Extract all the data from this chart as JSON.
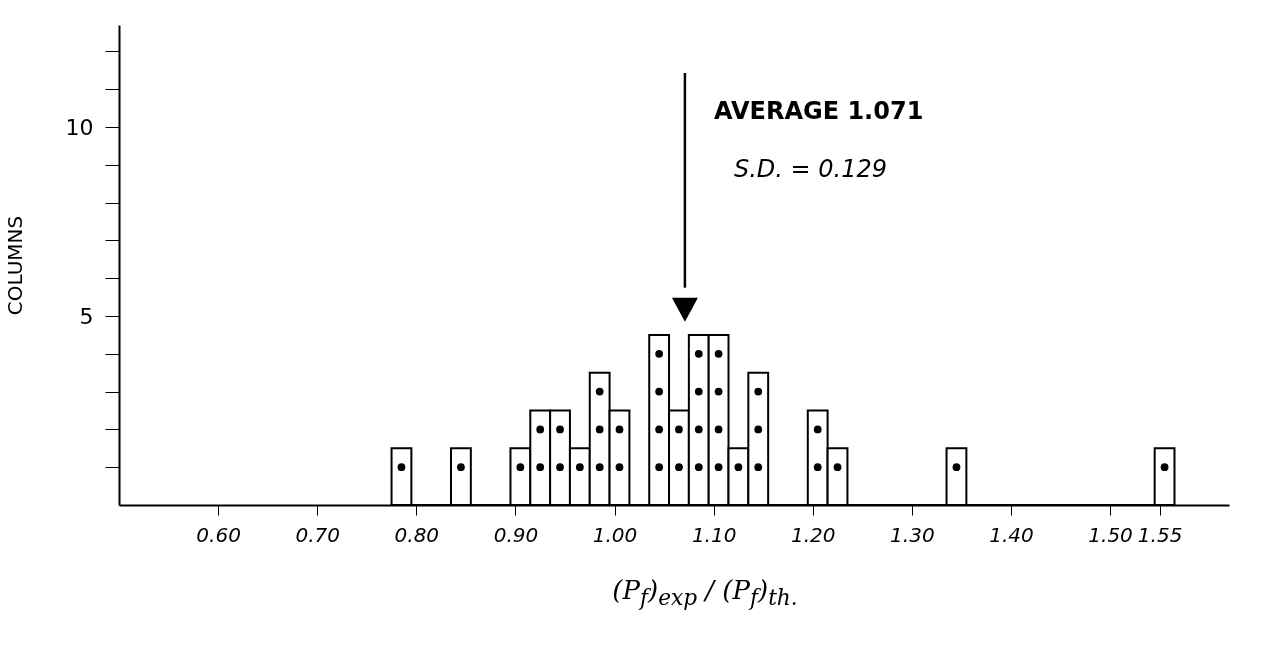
{
  "chart_data": {
    "type": "histogram",
    "xlabel": "(P$_{f}$)$_{exp}$ / (P$_{f}$)$_{th.}$",
    "ylabel": "COLUMNS",
    "series": [
      {
        "color": "#ffffff",
        "bins": [
          0.775,
          0.795,
          0.835,
          0.855,
          0.895,
          0.915,
          0.935,
          0.955,
          0.975,
          0.995,
          1.015,
          1.035,
          1.055,
          1.075,
          1.095,
          1.115,
          1.135,
          1.155,
          1.195,
          1.215,
          1.235,
          1.335,
          1.355,
          1.545,
          1.565
        ],
        "values": [
          1.5,
          0,
          1.5,
          0,
          1.5,
          2.5,
          2.5,
          1.5,
          3.5,
          2.5,
          0,
          4.5,
          2.5,
          4.5,
          4.5,
          1.5,
          3.5,
          0,
          2.5,
          1.5,
          0,
          1.5,
          0,
          1.5
        ]
      },
      {
        "type": "scatter",
        "color": "#000000",
        "marker": "circle",
        "x": [
          0.785,
          0.845,
          0.905,
          0.925,
          0.925,
          0.945,
          0.945,
          0.965,
          0.985,
          0.985,
          0.985,
          1.005,
          1.005,
          1.045,
          1.045,
          1.045,
          1.045,
          1.065,
          1.065,
          1.085,
          1.085,
          1.085,
          1.085,
          1.105,
          1.105,
          1.105,
          1.105,
          1.125,
          1.145,
          1.145,
          1.145,
          1.205,
          1.205,
          1.225,
          1.345,
          1.555
        ],
        "values": [
          1,
          1,
          1,
          1,
          2,
          1,
          2,
          1,
          1,
          2,
          3,
          1,
          2,
          1,
          2,
          3,
          4,
          1,
          2,
          1,
          2,
          3,
          4,
          1,
          2,
          3,
          4,
          1,
          1,
          2,
          3,
          1,
          2,
          1,
          1,
          1
        ]
      }
    ],
    "xlim": [
      0.5,
      1.62
    ],
    "xticks": [
      {
        "value": 0.6,
        "label": "0.60"
      },
      {
        "value": 0.7,
        "label": "0.70"
      },
      {
        "value": 0.8,
        "label": "0.80"
      },
      {
        "value": 0.9,
        "label": "0.90"
      },
      {
        "value": 1.0,
        "label": "1.00"
      },
      {
        "value": 1.1,
        "label": "1.10"
      },
      {
        "value": 1.2,
        "label": "1.20"
      },
      {
        "value": 1.3,
        "label": "1.30"
      },
      {
        "value": 1.4,
        "label": "1.40"
      },
      {
        "value": 1.5,
        "label": "1.50"
      },
      1.55
    ],
    "ylim": [
      0,
      12.7
    ],
    "yticks": [
      {
        "value": 1,
        "label": null
      },
      {
        "value": 2,
        "label": null
      },
      {
        "value": 3,
        "label": null
      },
      {
        "value": 4,
        "label": null
      },
      5,
      {
        "value": 6,
        "label": null
      },
      {
        "value": 7,
        "label": null
      },
      {
        "value": 8,
        "label": null
      },
      {
        "value": 9,
        "label": null
      },
      10,
      {
        "value": 11,
        "label": null
      },
      {
        "value": 12,
        "label": null
      }
    ],
    "ref_lines": [
      {
        "axis": "x",
        "value": 1.071
      }
    ],
    "annotations": [
      "AVERAGE 1.071",
      "S.D. = 0.129"
    ]
  }
}
